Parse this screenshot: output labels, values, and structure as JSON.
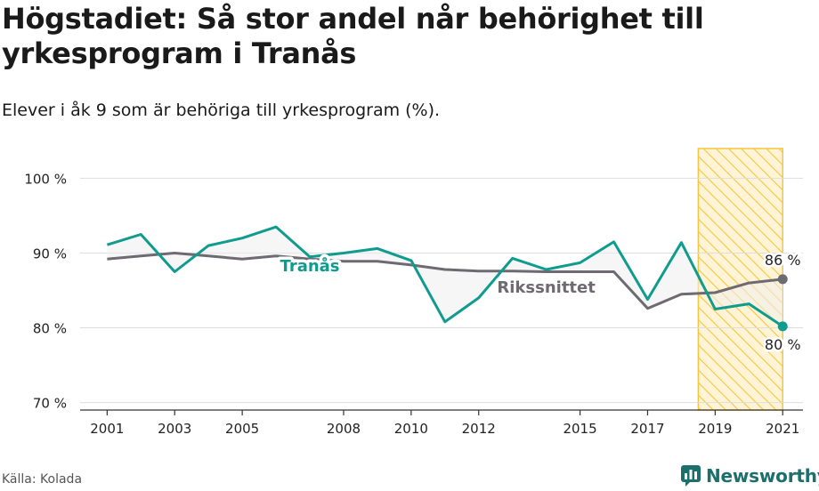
{
  "title": "Högstadiet: Så stor andel når behörighet till yrkesprogram i Tranås",
  "subtitle": "Elever i åk 9 som är behöriga till yrkesprogram (%).",
  "source": "Källa: Kolada",
  "brand": {
    "name": "Newsworthy"
  },
  "colors": {
    "tranas": "#0f9b8e",
    "riket": "#6e6a72",
    "highlight": "#f5c542",
    "grid": "#dddddd"
  },
  "chart_data": {
    "type": "line",
    "x": [
      2001,
      2002,
      2003,
      2004,
      2005,
      2006,
      2007,
      2008,
      2009,
      2010,
      2011,
      2012,
      2013,
      2014,
      2015,
      2016,
      2017,
      2018,
      2019,
      2020,
      2021
    ],
    "x_tick_labels": [
      "2001",
      "2003",
      "2005",
      "2008",
      "2010",
      "2012",
      "2015",
      "2017",
      "2019",
      "2021"
    ],
    "y_tick_labels": [
      "100 %",
      "90 %",
      "80 %",
      "70 %"
    ],
    "y_ticks": [
      100,
      90,
      80,
      70
    ],
    "ylim": [
      69,
      106
    ],
    "xlim": [
      2000.2,
      2021.6
    ],
    "highlight_range": [
      2018.5,
      2021
    ],
    "series": [
      {
        "name": "Tranås",
        "values": [
          91.1,
          92.5,
          87.5,
          91.0,
          92.0,
          93.5,
          89.5,
          90.0,
          90.6,
          89.0,
          80.8,
          84.0,
          89.3,
          87.8,
          88.7,
          91.5,
          83.8,
          91.4,
          82.5,
          83.2,
          80.2
        ]
      },
      {
        "name": "Rikssnittet",
        "values": [
          89.2,
          89.6,
          90.0,
          89.6,
          89.2,
          89.6,
          89.2,
          88.9,
          88.9,
          88.4,
          87.8,
          87.6,
          87.6,
          87.5,
          87.5,
          87.5,
          82.6,
          84.5,
          84.7,
          86.0,
          86.5
        ]
      }
    ],
    "end_labels": {
      "Tranås": "80 %",
      "Rikssnittet": "86 %"
    }
  }
}
